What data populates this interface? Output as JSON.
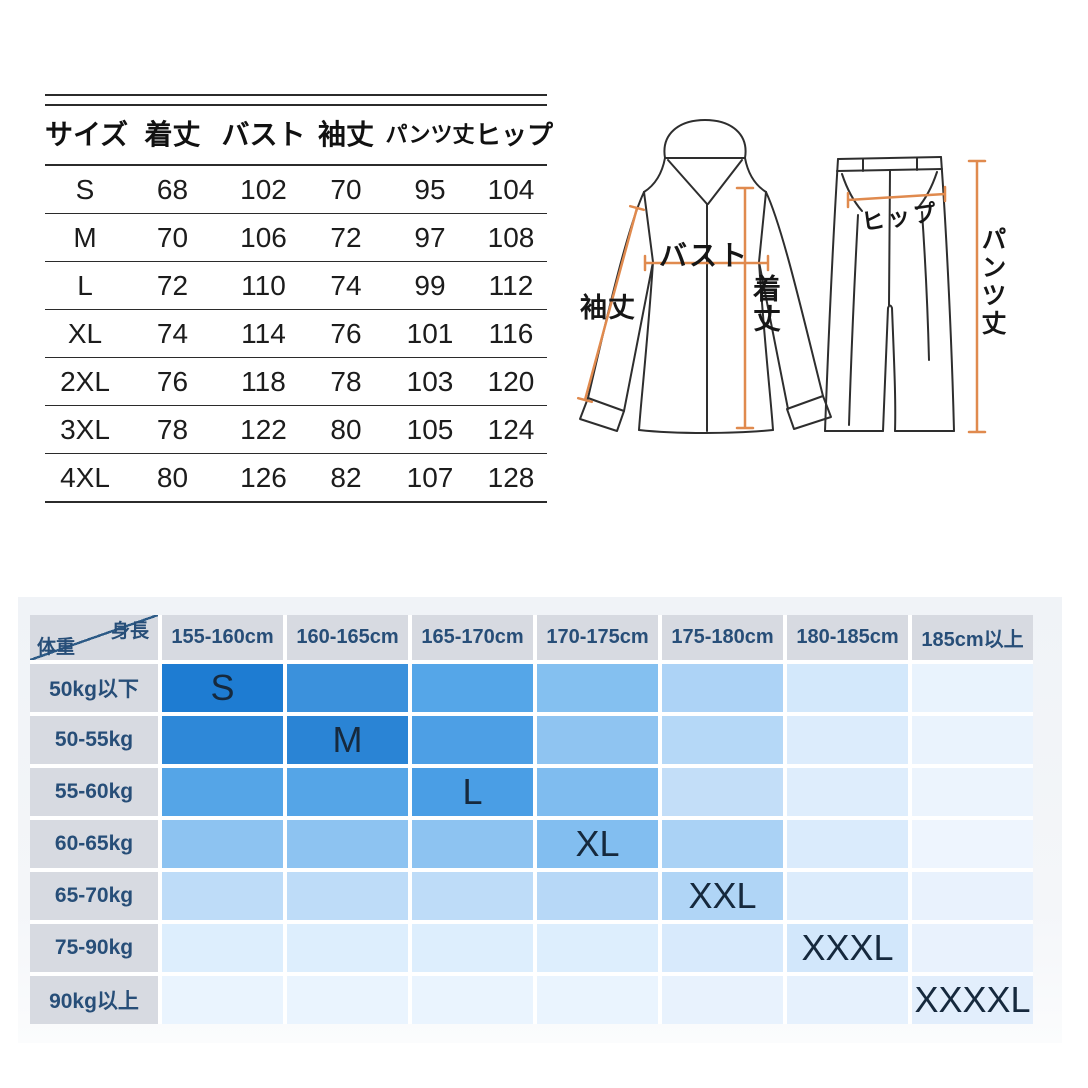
{
  "size_table": {
    "headers": [
      "サイズ",
      "着丈",
      "バスト",
      "袖丈",
      "パンツ丈",
      "ヒップ"
    ],
    "rows": [
      [
        "S",
        "68",
        "102",
        "70",
        "95",
        "104"
      ],
      [
        "M",
        "70",
        "106",
        "72",
        "97",
        "108"
      ],
      [
        "L",
        "72",
        "110",
        "74",
        "99",
        "112"
      ],
      [
        "XL",
        "74",
        "114",
        "76",
        "101",
        "116"
      ],
      [
        "2XL",
        "76",
        "118",
        "78",
        "103",
        "120"
      ],
      [
        "3XL",
        "78",
        "122",
        "80",
        "105",
        "124"
      ],
      [
        "4XL",
        "80",
        "126",
        "82",
        "107",
        "128"
      ]
    ]
  },
  "diagram": {
    "labels": {
      "bust": "バスト",
      "length": "着丈",
      "sleeve": "袖丈",
      "hip": "ヒップ",
      "pants_length": "パンツ丈"
    },
    "measure_line_color": "#E08A4E",
    "outline_color": "#2e2e2e"
  },
  "fit_matrix": {
    "corner": {
      "top_right": "身長",
      "bottom_left": "体重"
    },
    "height_columns": [
      "155-160cm",
      "160-165cm",
      "165-170cm",
      "170-175cm",
      "175-180cm",
      "180-185cm",
      "185cm以上"
    ],
    "weight_rows": [
      "50kg以下",
      "50-55kg",
      "55-60kg",
      "60-65kg",
      "65-70kg",
      "75-90kg",
      "90kg以上"
    ],
    "size_labels": [
      {
        "row": 0,
        "col": 0,
        "label": "S"
      },
      {
        "row": 1,
        "col": 1,
        "label": "M"
      },
      {
        "row": 2,
        "col": 2,
        "label": "L"
      },
      {
        "row": 3,
        "col": 3,
        "label": "XL"
      },
      {
        "row": 4,
        "col": 4,
        "label": "XXL"
      },
      {
        "row": 5,
        "col": 5,
        "label": "XXXL"
      },
      {
        "row": 6,
        "col": 6,
        "label": "XXXXL"
      }
    ],
    "cell_colors": [
      [
        "#1e7cd2",
        "#3b91dc",
        "#55a6e8",
        "#84c0f0",
        "#add3f6",
        "#d3e8fb",
        "#e9f3fd"
      ],
      [
        "#2e88d8",
        "#2a84d5",
        "#4d9fe5",
        "#8fc4f1",
        "#b5d8f7",
        "#dcecfc",
        "#eaf3fd"
      ],
      [
        "#55a5e7",
        "#55a5e7",
        "#4a9ee5",
        "#7fbcef",
        "#c3def8",
        "#deedfc",
        "#ecf4fd"
      ],
      [
        "#8dc3f1",
        "#8dc3f1",
        "#8dc3f1",
        "#82bef0",
        "#aad2f5",
        "#daebfc",
        "#eef5fe"
      ],
      [
        "#bedcf8",
        "#bedcf8",
        "#bedcf8",
        "#b7d8f7",
        "#b0d5f6",
        "#dcecfc",
        "#e9f2fd"
      ],
      [
        "#ddeefd",
        "#ddeefd",
        "#ddeefd",
        "#ddeefd",
        "#d8eafc",
        "#d2e7fb",
        "#e9f2fd"
      ],
      [
        "#eaf4fe",
        "#eaf4fe",
        "#eaf4fe",
        "#eaf4fe",
        "#e8f2fd",
        "#e6f1fd",
        "#e2eefc"
      ]
    ],
    "header_bg": "#d7dae1",
    "header_text_color": "#274e78",
    "size_text_color": "#16293d"
  }
}
